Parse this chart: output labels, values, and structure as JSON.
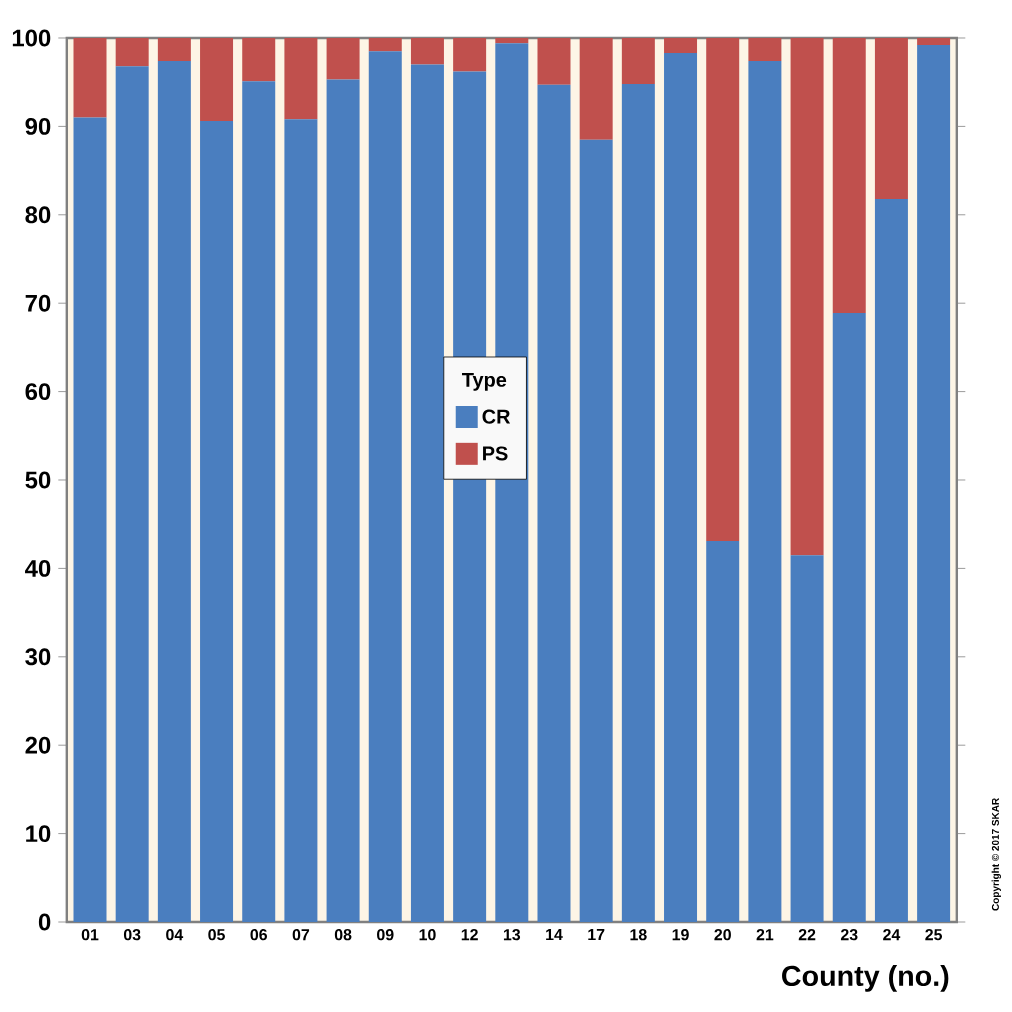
{
  "chart_data": {
    "type": "bar",
    "stacked": true,
    "xlabel": "County (no.)",
    "legend_title": "Type",
    "legend": "center",
    "categories": [
      "01",
      "03",
      "04",
      "05",
      "06",
      "07",
      "08",
      "09",
      "10",
      "12",
      "13",
      "14",
      "17",
      "18",
      "19",
      "20",
      "21",
      "22",
      "23",
      "24",
      "25"
    ],
    "series": [
      {
        "name": "CR",
        "color": "#4a7ebf",
        "values": [
          91.0,
          96.8,
          97.4,
          90.6,
          95.1,
          90.8,
          95.3,
          98.5,
          97.0,
          96.2,
          99.4,
          94.7,
          88.5,
          94.8,
          98.3,
          43.1,
          97.4,
          41.5,
          68.9,
          81.8,
          99.2
        ]
      },
      {
        "name": "PS",
        "color": "#c0504d",
        "values": [
          9.0,
          3.2,
          2.6,
          9.4,
          4.9,
          9.2,
          4.7,
          1.5,
          3.0,
          3.8,
          0.6,
          5.3,
          11.5,
          5.2,
          1.7,
          56.9,
          2.6,
          58.5,
          31.1,
          18.2,
          0.8
        ]
      }
    ],
    "ylim": [
      0,
      100
    ],
    "yticks": [
      0,
      10,
      20,
      30,
      40,
      50,
      60,
      70,
      80,
      90,
      100
    ],
    "grid": false,
    "annotations": [
      "Copyright © 2017 SKAR"
    ]
  }
}
